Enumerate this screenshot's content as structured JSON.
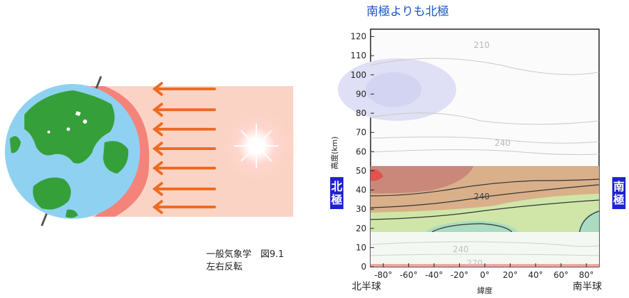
{
  "title": "南極よりも北極",
  "caption": {
    "line1": "一般気象学　図9.1",
    "line2": "左右反転"
  },
  "labels": {
    "north_pole": "北極",
    "south_pole": "南極",
    "north_hemisphere": "北半球",
    "south_hemisphere": "南半球"
  },
  "colors": {
    "title": "#1a56c4",
    "pole_bg": "#1f22d2",
    "arrow": "#ee6b22",
    "ocean": "#8fd1f0",
    "land": "#35a03a"
  },
  "chart_data": {
    "type": "contour",
    "xlabel": "緯度",
    "ylabel": "高度(km)",
    "x_ticks": [
      "-80°",
      "-60°",
      "-40°",
      "-20°",
      "0°",
      "20°",
      "40°",
      "60°",
      "80°"
    ],
    "y_ticks": [
      "0",
      "10",
      "20",
      "30",
      "40",
      "50",
      "60",
      "70",
      "80",
      "90",
      "100",
      "110",
      "120"
    ],
    "xlim": [
      -90,
      90
    ],
    "ylim": [
      0,
      122
    ],
    "contour_labels": [
      "210",
      "240",
      "240",
      "240",
      "270"
    ]
  }
}
